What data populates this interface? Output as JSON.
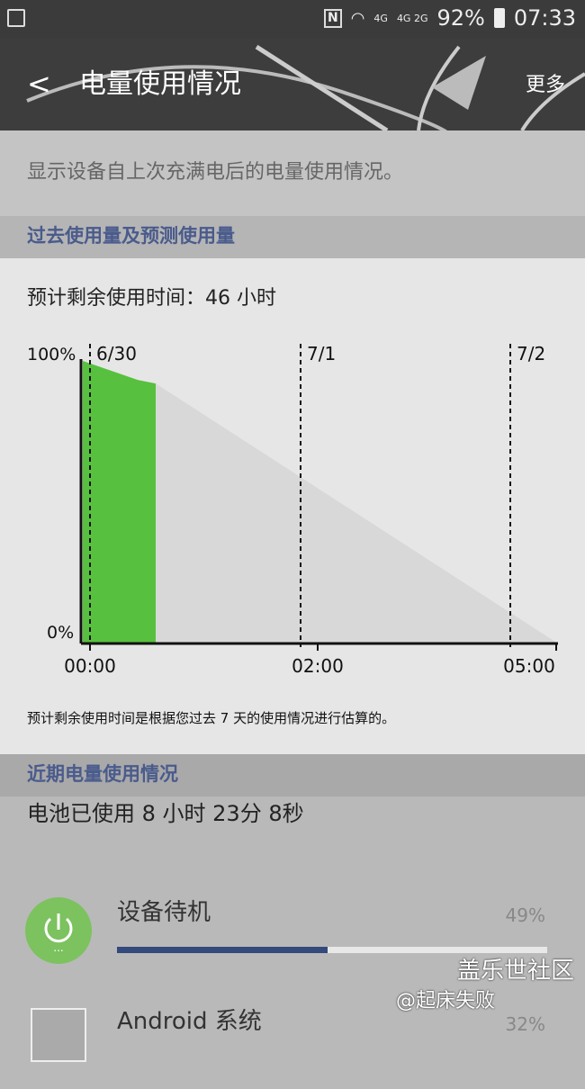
{
  "status_bar": {
    "network": "4G",
    "network2": "4G 2G",
    "battery": "92%",
    "time": "07:33"
  },
  "header": {
    "title": "电量使用情况",
    "more": "更多"
  },
  "description": "显示设备自上次充满电后的电量使用情况。",
  "forecast_section": {
    "title": "过去使用量及预测使用量",
    "remaining": "预计剩余使用时间：46 小时",
    "note": "预计剩余使用时间是根据您过去 7 天的使用情况进行估算的。"
  },
  "chart_data": {
    "type": "area",
    "y_labels": [
      "100%",
      "0%"
    ],
    "date_labels": [
      "6/30",
      "7/1",
      "7/2"
    ],
    "x_labels": [
      "00:00",
      "02:00",
      "05:00"
    ],
    "series": [
      {
        "values_used": [
          100,
          92
        ],
        "predicted": [
          92,
          0
        ]
      }
    ],
    "colors": {
      "used": "#58c03f",
      "predicted": "#d8d8d8"
    }
  },
  "recent_section": {
    "title": "近期电量使用情况",
    "battery_used": "电池已使用 8 小时 23分 8秒"
  },
  "items": [
    {
      "name": "设备待机",
      "percent": "49%",
      "fraction": 0.49,
      "icon": "power-icon"
    },
    {
      "name": "Android 系统",
      "percent": "32%",
      "fraction": 0.32,
      "icon": "android-system-icon"
    }
  ],
  "watermark": {
    "line1": "盖乐世社区",
    "line2": "@起床失败"
  }
}
